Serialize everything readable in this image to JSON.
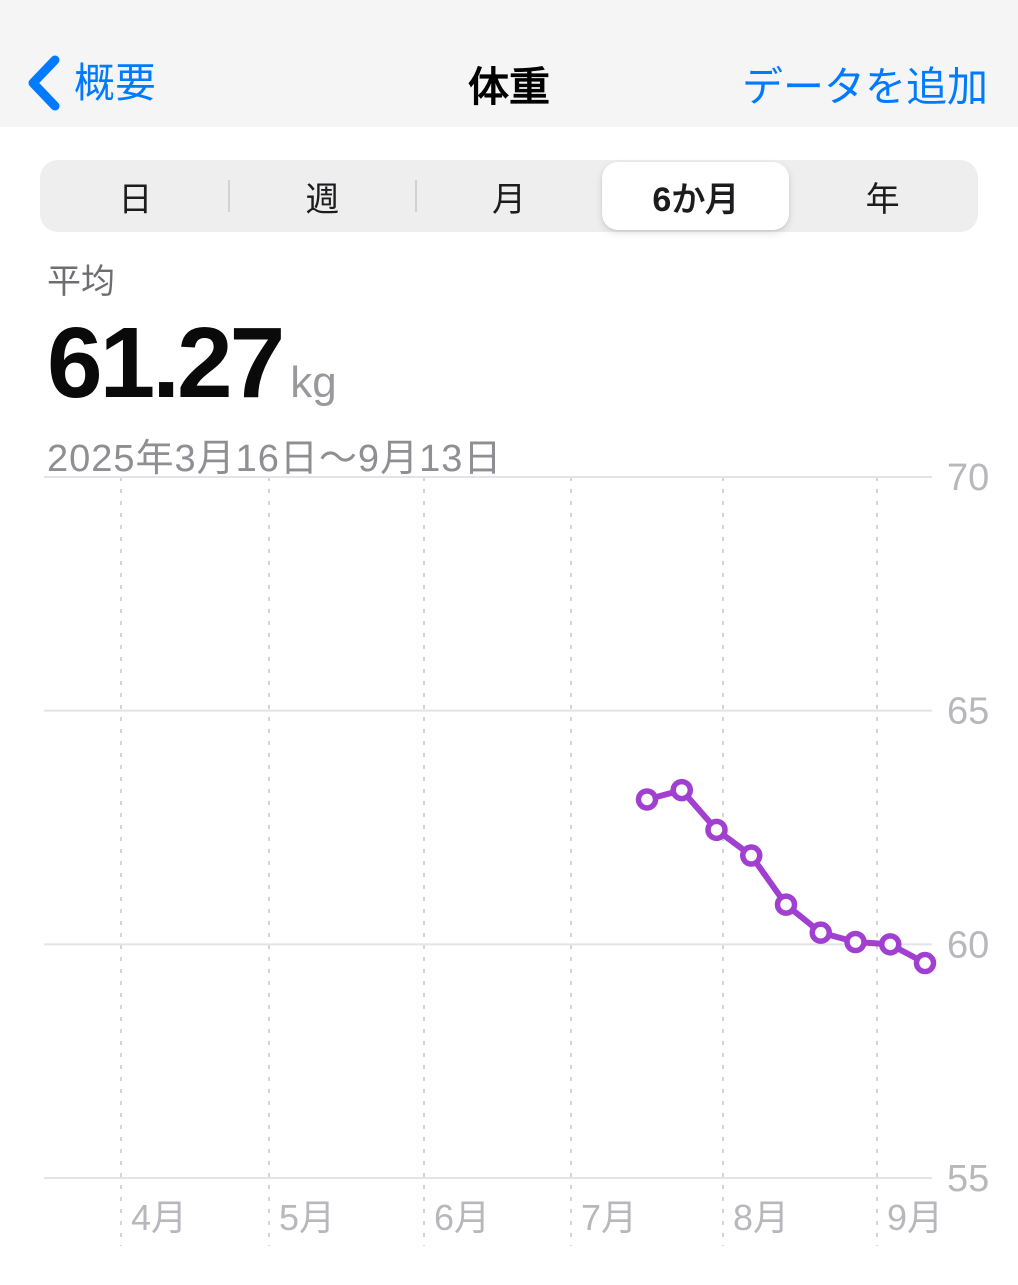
{
  "nav": {
    "back_label": "概要",
    "title": "体重",
    "add_data_label": "データを追加"
  },
  "segments": {
    "items": [
      {
        "label": "日",
        "selected": false
      },
      {
        "label": "週",
        "selected": false
      },
      {
        "label": "月",
        "selected": false
      },
      {
        "label": "6か月",
        "selected": true
      },
      {
        "label": "年",
        "selected": false
      }
    ]
  },
  "stats": {
    "average_label": "平均",
    "average_value": "61.27",
    "unit": "kg",
    "date_range": "2025年3月16日〜9月13日"
  },
  "colors": {
    "accent_blue": "#007AFF",
    "line_purple": "#A03FD0",
    "grid_solid": "#e4e4e8",
    "grid_dashed": "#d4d4d9",
    "axis_label": "#b7b7bc"
  },
  "chart_data": {
    "type": "line",
    "title": "体重 6か月推移",
    "unit": "kg",
    "ylim": [
      55,
      70
    ],
    "yticks": [
      70,
      65,
      60,
      55
    ],
    "x_axis_labels": [
      "4月",
      "5月",
      "6月",
      "7月",
      "8月",
      "9月"
    ],
    "x_estimated_dates": [
      "7/15",
      "7/22",
      "7/29",
      "8/5",
      "8/12",
      "8/19",
      "8/26",
      "9/2",
      "9/9"
    ],
    "values": [
      63.1,
      63.3,
      62.45,
      61.9,
      60.85,
      60.25,
      60.05,
      60.0,
      59.6
    ],
    "grid": true,
    "legend": "none",
    "marker": "open-circle"
  }
}
